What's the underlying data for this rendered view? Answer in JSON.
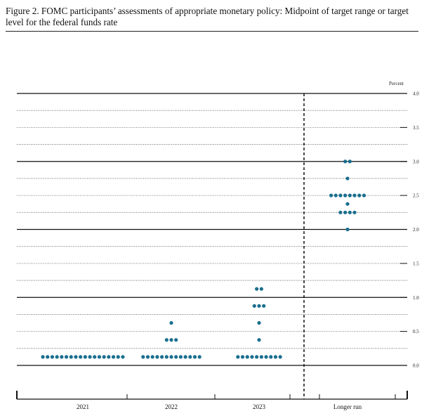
{
  "figure": {
    "title": "Figure 2.  FOMC participants’ assessments of appropriate monetary policy:  Midpoint of target range or target level for the federal funds rate"
  },
  "chart_data": {
    "type": "scatter",
    "unit_label": "Percent",
    "ylim": [
      0.0,
      4.0
    ],
    "yticks": [
      "0.0",
      "0.5",
      "1.0",
      "1.5",
      "2.0",
      "2.5",
      "3.0",
      "3.5",
      "4.0"
    ],
    "grid": "dotted every 0.25, solid every 1.0",
    "groups": [
      {
        "label": "2021",
        "points": [
          {
            "y": 0.125,
            "count": 18
          }
        ]
      },
      {
        "label": "2022",
        "points": [
          {
            "y": 0.125,
            "count": 13
          },
          {
            "y": 0.375,
            "count": 3
          },
          {
            "y": 0.625,
            "count": 1
          }
        ]
      },
      {
        "label": "2023",
        "points": [
          {
            "y": 0.125,
            "count": 10
          },
          {
            "y": 0.375,
            "count": 1
          },
          {
            "y": 0.625,
            "count": 1
          },
          {
            "y": 0.875,
            "count": 3
          },
          {
            "y": 1.125,
            "count": 2
          }
        ]
      },
      {
        "label": "Longer run",
        "points": [
          {
            "y": 2.0,
            "count": 1
          },
          {
            "y": 2.25,
            "count": 4
          },
          {
            "y": 2.375,
            "count": 1
          },
          {
            "y": 2.5,
            "count": 8
          },
          {
            "y": 2.75,
            "count": 1
          },
          {
            "y": 3.0,
            "count": 2
          }
        ]
      }
    ],
    "dot_color": "#1a6f8e"
  }
}
